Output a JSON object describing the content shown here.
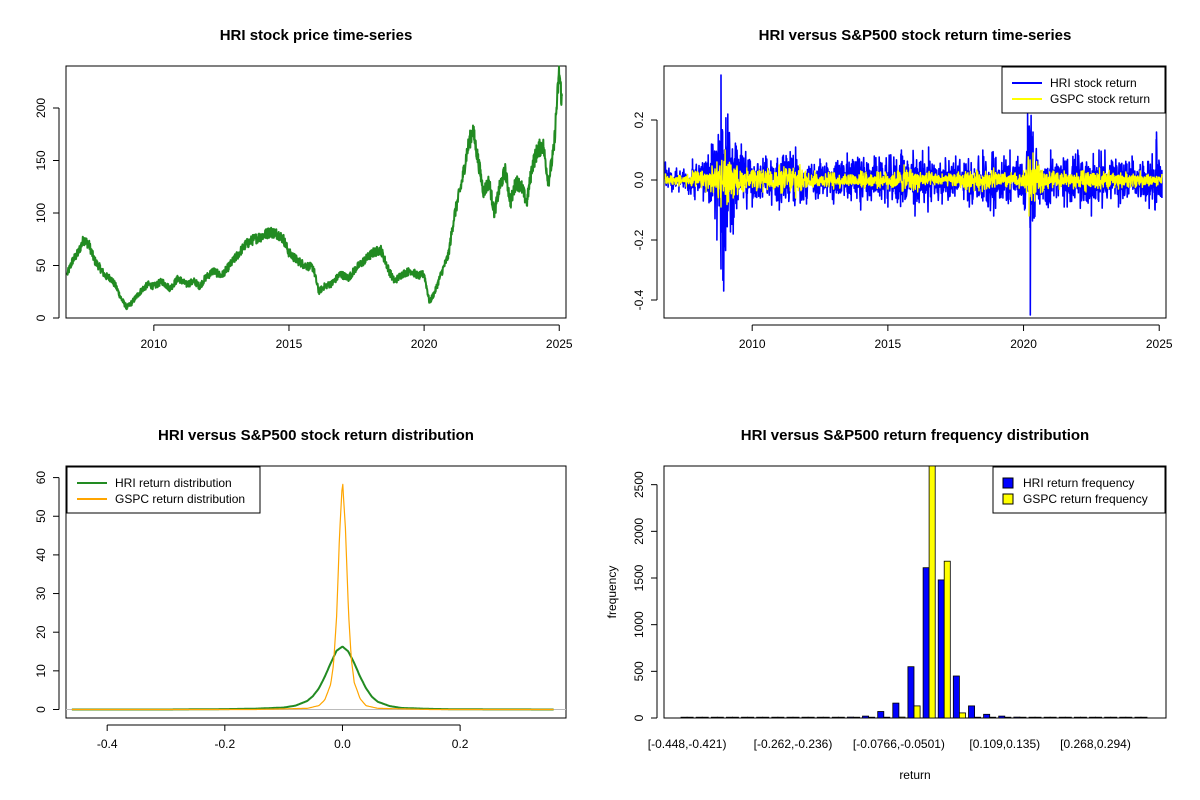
{
  "chart_data": [
    {
      "id": "price",
      "type": "line",
      "title": "HRI stock price time-series",
      "xlabel": "",
      "ylabel": "",
      "xlim": [
        2006.75,
        2025.25
      ],
      "ylim": [
        0,
        240
      ],
      "xticks": [
        2010,
        2015,
        2020,
        2025
      ],
      "yticks": [
        0,
        50,
        100,
        150,
        200
      ],
      "series": [
        {
          "color": "#228B22",
          "x": [
            2006.8,
            2007.0,
            2007.2,
            2007.4,
            2007.6,
            2007.8,
            2008.0,
            2008.2,
            2008.4,
            2008.6,
            2008.8,
            2009.0,
            2009.2,
            2009.4,
            2009.6,
            2009.8,
            2010.0,
            2010.3,
            2010.6,
            2010.9,
            2011.2,
            2011.5,
            2011.7,
            2011.9,
            2012.2,
            2012.5,
            2012.8,
            2013.1,
            2013.4,
            2013.7,
            2014.0,
            2014.3,
            2014.6,
            2014.8,
            2015.0,
            2015.3,
            2015.6,
            2015.9,
            2016.1,
            2016.3,
            2016.6,
            2016.9,
            2017.2,
            2017.5,
            2017.8,
            2018.1,
            2018.4,
            2018.7,
            2018.9,
            2019.2,
            2019.5,
            2019.8,
            2020.0,
            2020.2,
            2020.4,
            2020.6,
            2020.9,
            2021.1,
            2021.4,
            2021.6,
            2021.8,
            2022.0,
            2022.2,
            2022.4,
            2022.6,
            2022.8,
            2023.0,
            2023.2,
            2023.4,
            2023.6,
            2023.8,
            2024.0,
            2024.2,
            2024.4,
            2024.6,
            2024.8,
            2024.9,
            2025.0,
            2025.1
          ],
          "values": [
            42,
            55,
            62,
            75,
            70,
            55,
            48,
            40,
            38,
            30,
            18,
            10,
            15,
            22,
            28,
            32,
            30,
            35,
            28,
            38,
            32,
            35,
            30,
            38,
            45,
            40,
            50,
            60,
            70,
            75,
            78,
            82,
            80,
            75,
            62,
            55,
            50,
            48,
            25,
            30,
            33,
            42,
            38,
            48,
            55,
            62,
            65,
            45,
            35,
            42,
            45,
            40,
            42,
            15,
            25,
            40,
            60,
            95,
            130,
            160,
            180,
            150,
            120,
            130,
            100,
            125,
            140,
            110,
            130,
            125,
            110,
            145,
            160,
            165,
            130,
            160,
            200,
            235,
            205
          ]
        }
      ]
    },
    {
      "id": "returns",
      "type": "line",
      "title": "HRI versus S&P500 stock return time-series",
      "xlabel": "",
      "ylabel": "",
      "xlim": [
        2006.75,
        2025.25
      ],
      "ylim": [
        -0.46,
        0.38
      ],
      "xticks": [
        2010,
        2015,
        2020,
        2025
      ],
      "yticks": [
        -0.4,
        -0.2,
        0.0,
        0.2
      ],
      "ytick_labels": [
        "-0.4",
        "-0.2",
        "0.0",
        "0.2"
      ],
      "legend": {
        "position": "top-right",
        "entries": [
          "HRI stock return",
          "GSPC stock return"
        ]
      },
      "series": [
        {
          "name": "HRI stock return",
          "color": "#0000FF",
          "x": [
            2006.8,
            2007.3,
            2007.8,
            2008.2,
            2008.5,
            2008.7,
            2008.85,
            2008.95,
            2009.1,
            2009.3,
            2009.6,
            2010.0,
            2010.5,
            2011.0,
            2011.6,
            2012.0,
            2012.5,
            2013.0,
            2013.5,
            2014.0,
            2014.5,
            2015.0,
            2015.5,
            2016.0,
            2016.5,
            2017.0,
            2017.5,
            2018.0,
            2018.5,
            2018.9,
            2019.5,
            2020.0,
            2020.15,
            2020.25,
            2020.35,
            2020.6,
            2021.0,
            2021.5,
            2022.0,
            2022.5,
            2023.0,
            2023.5,
            2024.0,
            2024.5,
            2024.9,
            2025.1
          ],
          "values": [
            0.06,
            -0.04,
            0.07,
            -0.07,
            0.12,
            -0.2,
            0.35,
            -0.37,
            0.22,
            -0.18,
            0.12,
            -0.09,
            0.08,
            -0.1,
            0.11,
            -0.08,
            0.07,
            -0.08,
            0.09,
            -0.1,
            0.08,
            -0.09,
            0.1,
            -0.12,
            0.11,
            -0.08,
            0.08,
            -0.09,
            0.1,
            -0.12,
            0.1,
            -0.08,
            0.22,
            -0.45,
            0.16,
            -0.08,
            0.1,
            -0.09,
            0.1,
            -0.12,
            0.1,
            -0.09,
            0.08,
            -0.07,
            0.16,
            -0.06
          ]
        },
        {
          "name": "GSPC stock return",
          "color": "#FFFF00",
          "x": [
            2006.8,
            2007.3,
            2007.8,
            2008.3,
            2008.7,
            2008.85,
            2009.0,
            2009.3,
            2009.8,
            2010.4,
            2011.0,
            2011.6,
            2012.3,
            2013.0,
            2014.0,
            2015.0,
            2015.6,
            2016.1,
            2017.0,
            2018.0,
            2018.9,
            2019.5,
            2020.0,
            2020.2,
            2020.35,
            2020.7,
            2021.5,
            2022.3,
            2022.8,
            2023.5,
            2024.3,
            2024.9,
            2025.1
          ],
          "values": [
            0.02,
            -0.02,
            0.03,
            -0.04,
            0.06,
            -0.09,
            0.1,
            -0.06,
            0.04,
            -0.04,
            0.05,
            -0.06,
            0.03,
            -0.03,
            0.03,
            -0.03,
            0.05,
            -0.04,
            0.02,
            -0.04,
            0.04,
            -0.03,
            0.03,
            -0.12,
            0.09,
            -0.04,
            0.03,
            -0.04,
            0.04,
            -0.03,
            0.03,
            -0.02,
            0.02
          ]
        }
      ]
    },
    {
      "id": "density",
      "type": "line",
      "title": "HRI versus S&P500 stock return distribution",
      "xlabel": "",
      "ylabel": "",
      "xlim": [
        -0.47,
        0.38
      ],
      "ylim": [
        -2.2,
        63
      ],
      "xticks": [
        -0.4,
        -0.2,
        0.0,
        0.2
      ],
      "xtick_labels": [
        "-0.4",
        "-0.2",
        "0.0",
        "0.2"
      ],
      "yticks": [
        0,
        10,
        20,
        30,
        40,
        50,
        60
      ],
      "legend": {
        "position": "top-left",
        "entries": [
          "HRI return distribution",
          "GSPC return distribution"
        ]
      },
      "series": [
        {
          "name": "HRI return distribution",
          "color": "#228B22",
          "x": [
            -0.46,
            -0.3,
            -0.2,
            -0.15,
            -0.1,
            -0.08,
            -0.06,
            -0.05,
            -0.04,
            -0.03,
            -0.02,
            -0.01,
            0.0,
            0.01,
            0.02,
            0.03,
            0.04,
            0.05,
            0.06,
            0.08,
            0.1,
            0.15,
            0.2,
            0.36
          ],
          "values": [
            0.0,
            0.0,
            0.1,
            0.2,
            0.5,
            1.0,
            2.2,
            3.5,
            5.5,
            8.5,
            12.0,
            15.2,
            16.3,
            15.0,
            12.0,
            8.5,
            5.5,
            3.3,
            2.0,
            0.9,
            0.4,
            0.15,
            0.05,
            0.0
          ]
        },
        {
          "name": "GSPC return distribution",
          "color": "#FFA500",
          "x": [
            -0.46,
            -0.15,
            -0.06,
            -0.04,
            -0.03,
            -0.02,
            -0.015,
            -0.01,
            -0.005,
            0.0,
            0.005,
            0.01,
            0.015,
            0.02,
            0.03,
            0.04,
            0.06,
            0.15,
            0.36
          ],
          "values": [
            0.0,
            0.0,
            0.3,
            1.0,
            2.5,
            6.5,
            12.0,
            24.0,
            45.0,
            59.5,
            47.0,
            26.0,
            13.0,
            7.0,
            2.8,
            1.0,
            0.3,
            0.0,
            0.0
          ]
        }
      ]
    },
    {
      "id": "frequency",
      "type": "bar",
      "title": "HRI versus S&P500 return frequency distribution",
      "xlabel": "return",
      "ylabel": "frequency",
      "ylim": [
        0,
        2700
      ],
      "yticks": [
        0,
        500,
        1000,
        1500,
        2000,
        2500
      ],
      "categories": [
        "[-0.448,-0.421)",
        "[-0.421,-0.395)",
        "[-0.395,-0.368)",
        "[-0.368,-0.342)",
        "[-0.342,-0.315)",
        "[-0.315,-0.289)",
        "[-0.289,-0.262)",
        "[-0.262,-0.236)",
        "[-0.236,-0.209)",
        "[-0.209,-0.183)",
        "[-0.183,-0.156)",
        "[-0.156,-0.13)",
        "[-0.13,-0.103)",
        "[-0.103,-0.0766)",
        "[-0.0766,-0.0501)",
        "[-0.0501,-0.0236)",
        "[-0.0236,0.00288)",
        "[0.00288,0.0294)",
        "[0.0294,0.0558)",
        "[0.0558,0.0823)",
        "[0.0823,0.109)",
        "[0.109,0.135)",
        "[0.135,0.162)",
        "[0.162,0.188)",
        "[0.188,0.215)",
        "[0.215,0.241)",
        "[0.241,0.268)",
        "[0.268,0.294)",
        "[0.294,0.321)",
        "[0.321,0.347)",
        "[0.347,0.374)"
      ],
      "visible_category_labels": [
        "[-0.448,-0.421)",
        "[-0.262,-0.236)",
        "[-0.0766,-0.0501)",
        "[0.109,0.135)",
        "[0.268,0.294)"
      ],
      "legend": {
        "position": "top-right",
        "entries": [
          "HRI return frequency",
          "GSPC return frequency"
        ]
      },
      "series": [
        {
          "name": "HRI return frequency",
          "color": "#0000FF",
          "values": [
            1,
            0,
            0,
            1,
            1,
            0,
            2,
            2,
            4,
            4,
            6,
            10,
            20,
            70,
            160,
            550,
            1610,
            1480,
            450,
            130,
            40,
            20,
            10,
            6,
            3,
            2,
            1,
            1,
            0,
            1,
            0
          ]
        },
        {
          "name": "GSPC return frequency",
          "color": "#FFFF00",
          "values": [
            0,
            0,
            0,
            0,
            0,
            0,
            0,
            0,
            0,
            0,
            1,
            1,
            2,
            4,
            10,
            130,
            2700,
            1680,
            55,
            5,
            2,
            1,
            0,
            0,
            0,
            0,
            0,
            0,
            0,
            0,
            0
          ]
        }
      ]
    }
  ]
}
